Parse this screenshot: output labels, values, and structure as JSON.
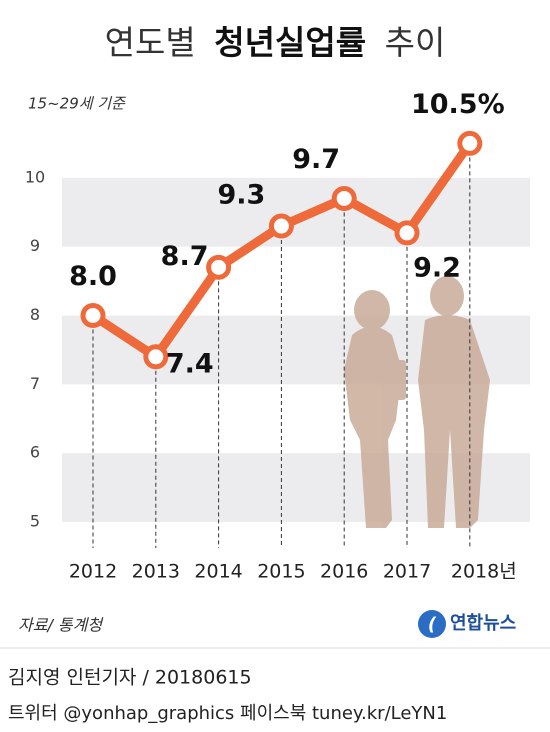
{
  "chart_data": {
    "type": "line",
    "title_parts": [
      "연도별",
      "청년실업률",
      "추이"
    ],
    "subtitle": "15~29세 기준",
    "categories": [
      "2012",
      "2013",
      "2014",
      "2015",
      "2016",
      "2017",
      "2018년"
    ],
    "series": [
      {
        "name": "청년실업률",
        "color": "#ef6a3a",
        "values": [
          8.0,
          7.4,
          8.7,
          9.3,
          9.7,
          9.2,
          10.5
        ],
        "value_labels": [
          "8.0",
          "7.4",
          "8.7",
          "9.3",
          "9.7",
          "9.2",
          "10.5%"
        ]
      }
    ],
    "ylim": [
      5,
      11
    ],
    "yticks": [
      5,
      6,
      7,
      8,
      9,
      10
    ],
    "bands": true,
    "source": "자료/ 통계청",
    "logo": "연합뉴스"
  },
  "footer": {
    "credit": "김지영 인턴기자 / 20180615",
    "social": "트위터 @yonhap_graphics  페이스북 tuney.kr/LeYN1"
  }
}
